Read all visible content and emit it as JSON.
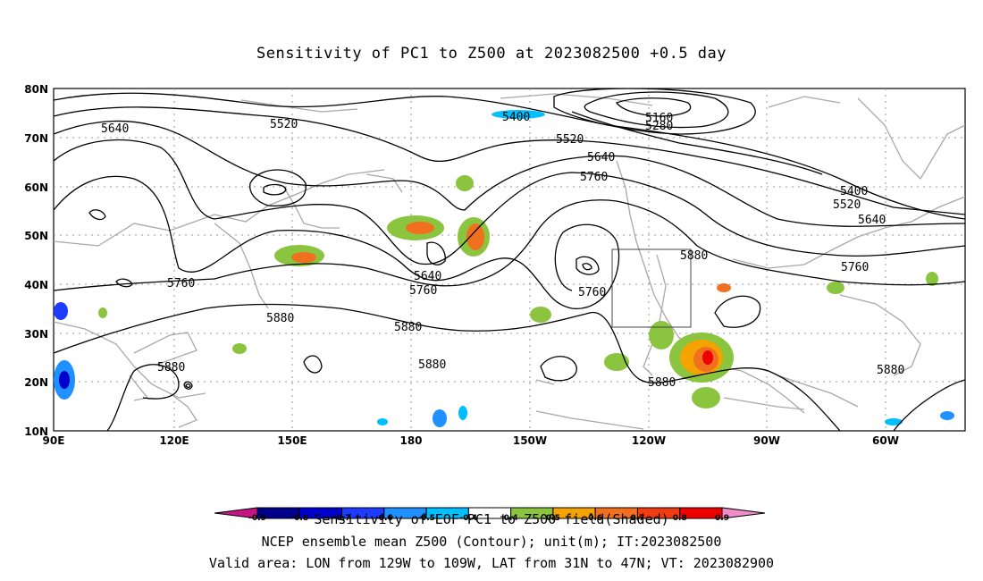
{
  "title": "Sensitivity of PC1 to Z500 at 2023082500 +0.5 day",
  "lat_labels": [
    "80N",
    "70N",
    "60N",
    "50N",
    "40N",
    "30N",
    "20N",
    "10N"
  ],
  "lon_labels": [
    "90E",
    "120E",
    "150E",
    "180",
    "150W",
    "120W",
    "90W",
    "60W"
  ],
  "contour_labels": [
    "5640",
    "5520",
    "5400",
    "5160",
    "5280",
    "5520",
    "5640",
    "5760",
    "5400",
    "5520",
    "5640",
    "5760",
    "5880",
    "5640",
    "5760",
    "5760",
    "5760",
    "5880",
    "5880",
    "5880",
    "5880",
    "5880",
    "5880"
  ],
  "colorbar": {
    "ticks": [
      "-0.9",
      "-0.8",
      "-0.7",
      "-0.6",
      "-0.5",
      "-0.4",
      "0.4",
      "0.5",
      "0.6",
      "0.7",
      "0.8",
      "0.9"
    ],
    "colors": [
      "#c71585",
      "#00008b",
      "#0000cd",
      "#1e3cff",
      "#1e90ff",
      "#00bfff",
      "#ffffff",
      "#8bc53f",
      "#f5a300",
      "#f07020",
      "#f03c10",
      "#ee0000",
      "#f08cc8"
    ]
  },
  "footer": {
    "line1": "Sensitivity of EOF PC1 to Z500 field(Shaded)",
    "line2": "NCEP ensemble mean Z500 (Contour); unit(m); IT:2023082500",
    "line3": "Valid area: LON from 129W to 109W, LAT from 31N to 47N; VT: 2023082900"
  }
}
